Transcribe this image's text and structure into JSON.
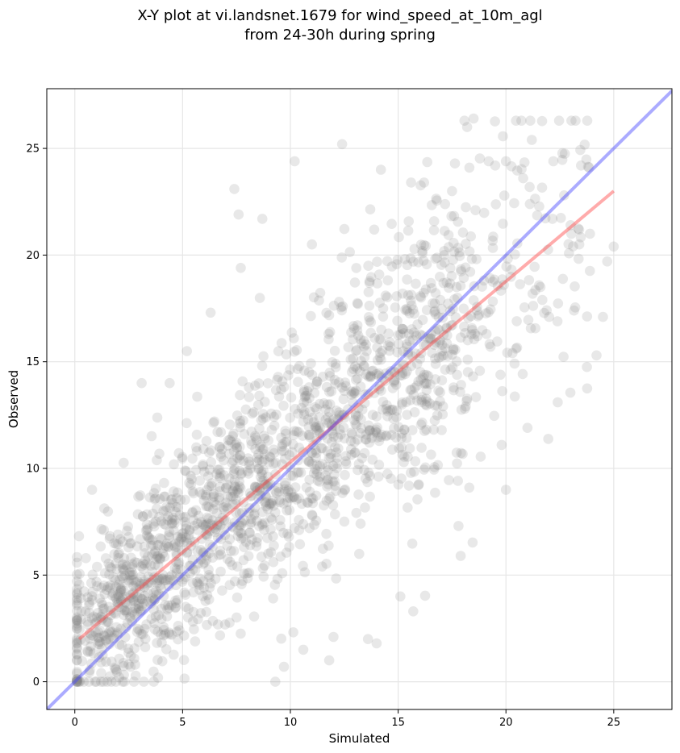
{
  "chart_data": {
    "type": "scatter",
    "title_lines": [
      "X-Y plot at vi.landsnet.1679 for wind_speed_at_10m_agl",
      "from 24-30h during spring"
    ],
    "xlabel": "Simulated",
    "ylabel": "Observed",
    "xlim": [
      -1.3,
      27.7
    ],
    "ylim": [
      -1.3,
      27.8
    ],
    "x_ticks": [
      0,
      5,
      10,
      15,
      20,
      25
    ],
    "y_ticks": [
      0,
      5,
      10,
      15,
      20,
      25
    ],
    "grid": true,
    "point_color": "#808080",
    "point_count_approx": 1900,
    "sample_points_note_free": true,
    "points": [
      [
        0.8,
        9.0
      ],
      [
        3.1,
        14.0
      ],
      [
        4.4,
        14.0
      ],
      [
        5.2,
        15.5
      ],
      [
        6.3,
        17.3
      ],
      [
        7.4,
        23.1
      ],
      [
        7.6,
        21.9
      ],
      [
        8.7,
        21.7
      ],
      [
        12.4,
        25.2
      ],
      [
        10.2,
        24.4
      ],
      [
        11.0,
        20.5
      ],
      [
        7.7,
        19.4
      ],
      [
        18.5,
        26.4
      ],
      [
        18.2,
        26.0
      ],
      [
        21.2,
        25.4
      ],
      [
        15.6,
        23.4
      ],
      [
        16.2,
        23.4
      ],
      [
        17.5,
        23.0
      ],
      [
        14.2,
        24.0
      ],
      [
        19.2,
        24.4
      ],
      [
        19.5,
        24.2
      ],
      [
        20.0,
        24.4
      ],
      [
        22.2,
        24.4
      ],
      [
        22.7,
        22.8
      ],
      [
        20.8,
        23.6
      ],
      [
        24.2,
        15.3
      ],
      [
        22.4,
        13.1
      ],
      [
        21.0,
        11.9
      ],
      [
        19.8,
        11.1
      ],
      [
        20.0,
        9.0
      ],
      [
        18.3,
        9.1
      ],
      [
        17.8,
        7.3
      ],
      [
        17.9,
        5.9
      ],
      [
        15.1,
        4.0
      ],
      [
        15.7,
        3.3
      ],
      [
        14.0,
        1.8
      ],
      [
        13.6,
        2.0
      ],
      [
        9.3,
        0.0
      ],
      [
        9.7,
        0.7
      ],
      [
        10.6,
        1.5
      ],
      [
        11.8,
        1.0
      ],
      [
        12.0,
        2.1
      ],
      [
        0.1,
        4.7
      ],
      [
        0.3,
        3.3
      ],
      [
        1.0,
        0.0
      ],
      [
        2.3,
        0.0
      ],
      [
        3.2,
        0.0
      ],
      [
        2.8,
        0.8
      ],
      [
        23.4,
        20.5
      ],
      [
        23.9,
        21.0
      ],
      [
        23.0,
        21.4
      ],
      [
        24.7,
        19.7
      ],
      [
        25.0,
        20.4
      ],
      [
        24.5,
        17.1
      ],
      [
        22.0,
        17.1
      ],
      [
        21.6,
        18.5
      ],
      [
        20.5,
        16.9
      ],
      [
        19.9,
        18.6
      ],
      [
        19.1,
        16.3
      ],
      [
        20.3,
        15.4
      ]
    ],
    "generated_cloud_seed": 1679,
    "series": [
      {
        "name": "",
        "role": "regression",
        "color": "#ff4444",
        "x": [
          0.2,
          25.0
        ],
        "y": [
          2.0,
          23.0
        ]
      },
      {
        "name": "",
        "role": "one-to-one",
        "color": "#4444ff",
        "x": [
          -1.3,
          27.7
        ],
        "y": [
          -1.3,
          27.7
        ]
      }
    ]
  }
}
